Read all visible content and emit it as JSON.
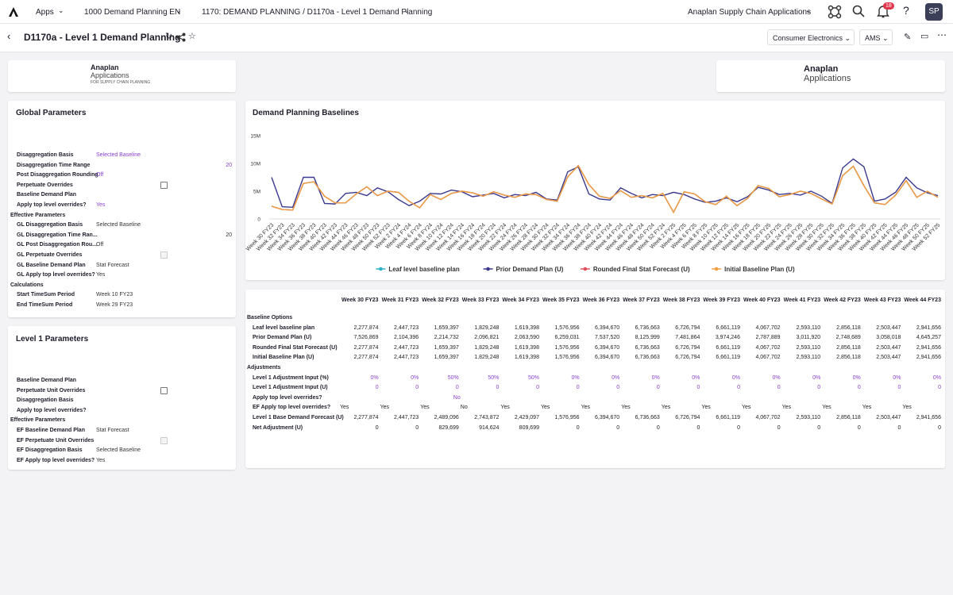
{
  "nav": {
    "apps": "Apps",
    "model": "1000 Demand Planning EN",
    "breadcrumb": "1170: DEMAND PLANNING / D1170a - Level 1 Demand Planning",
    "workspace": "Anaplan Supply Chain Applications",
    "notifications": "18",
    "user": "SP"
  },
  "header": {
    "title": "D1170a - Level 1 Demand Planning",
    "filters": [
      "Consumer Electronics",
      "AMS"
    ]
  },
  "logos": [
    {
      "brand": "Anaplan",
      "product": "Applications",
      "tagline": "FOR SUPPLY CHAIN PLANNING"
    },
    {
      "brand": "Anaplan",
      "product": "Applications"
    }
  ],
  "global_parameters": {
    "title": "Global Parameters",
    "rows": [
      {
        "label": "Disaggregation Basis",
        "value": "Selected Baseline"
      },
      {
        "label": "Disaggregation Time Range",
        "number": "20"
      },
      {
        "label": "Post Disaggregation Rounding",
        "value": "Off"
      },
      {
        "label": "Perpetuate Overrides",
        "checked": false
      },
      {
        "label": "Baseline Demand Plan"
      },
      {
        "label": "Apply top level overrides?",
        "value": "Yes"
      },
      {
        "section": "Effective Parameters"
      },
      {
        "label": "GL Disaggregation Basis",
        "value": "Selected Baseline",
        "readonly": true
      },
      {
        "label": "GL Disaggregation Time Ran...",
        "number": "20",
        "readonly": true
      },
      {
        "label": "GL Post Disaggregation Rou...",
        "value": "Off",
        "readonly": true
      },
      {
        "label": "GL Perpetuate Overrides",
        "checked": false,
        "readonly": true
      },
      {
        "label": "GL Baseline Demand Plan",
        "value": "Stat Forecast",
        "readonly": true
      },
      {
        "label": "GL Apply top level overrides?",
        "value": "Yes",
        "readonly": true
      },
      {
        "section": "Calculations"
      },
      {
        "label": "Start TimeSum Period",
        "value": "Week 10 FY23",
        "readonly": true
      },
      {
        "label": "End TimeSum Period",
        "value": "Week 29 FY23",
        "readonly": true
      }
    ]
  },
  "level1_parameters": {
    "title": "Level 1 Parameters",
    "rows": [
      {
        "label": "Baseline Demand Plan"
      },
      {
        "label": "Perpetuate Unit Overrides",
        "checked": false
      },
      {
        "label": "Disaggregation Basis"
      },
      {
        "label": "Apply top level overrides?"
      },
      {
        "section": "Effective Parameters"
      },
      {
        "label": "EF Baseline Demand Plan",
        "value": "Stat Forecast",
        "readonly": true
      },
      {
        "label": "EF Perpetuate Unit Overrides",
        "checked": false,
        "readonly": true
      },
      {
        "label": "EF Disaggregation Basis",
        "value": "Selected Baseline",
        "readonly": true
      },
      {
        "label": "EF Apply top level overrides?",
        "value": "Yes",
        "readonly": true
      }
    ]
  },
  "chart_data": {
    "type": "line",
    "title": "Demand Planning Baselines",
    "categories": [
      "Week 30 FY23",
      "Week 32 FY23",
      "Week 34 FY23",
      "Week 36 FY23",
      "Week 38 FY23",
      "Week 40 FY23",
      "Week 42 FY23",
      "Week 44 FY23",
      "Week 46 FY23",
      "Week 48 FY23",
      "Week 50 FY23",
      "Week 52 FY23",
      "Week 2 FY24",
      "Week 4 FY24",
      "Week 6 FY24",
      "Week 8 FY24",
      "Week 10 FY24",
      "Week 12 FY24",
      "Week 14 FY24",
      "Week 16 FY24",
      "Week 18 FY24",
      "Week 20 FY24",
      "Week 22 FY24",
      "Week 24 FY24",
      "Week 26 FY24",
      "Week 28 FY24",
      "Week 30 FY24",
      "Week 32 FY24",
      "Week 34 FY24",
      "Week 36 FY24",
      "Week 38 FY24",
      "Week 40 FY24",
      "Week 42 FY24",
      "Week 44 FY24",
      "Week 46 FY24",
      "Week 48 FY24",
      "Week 50 FY24",
      "Week 52 FY24",
      "Week 2 FY25",
      "Week 4 FY25",
      "Week 6 FY25",
      "Week 8 FY25",
      "Week 10 FY25",
      "Week 12 FY25",
      "Week 14 FY25",
      "Week 16 FY25",
      "Week 18 FY25",
      "Week 20 FY25",
      "Week 22 FY25",
      "Week 24 FY25",
      "Week 26 FY25",
      "Week 28 FY25",
      "Week 30 FY25",
      "Week 32 FY25",
      "Week 34 FY25",
      "Week 36 FY25",
      "Week 38 FY25",
      "Week 40 FY25",
      "Week 42 FY25",
      "Week 44 FY25",
      "Week 46 FY25",
      "Week 48 FY25",
      "Week 50 FY25",
      "Week 52 FY25"
    ],
    "series": [
      {
        "name": "Leaf level baseline plan",
        "color": "#2bb3c8",
        "values": [
          2.3,
          1.7,
          1.6,
          6.4,
          6.7,
          4.1,
          2.9,
          2.9,
          4.5,
          5.8,
          4.2,
          5.0,
          4.8,
          3.2,
          2.0,
          4.4,
          3.5,
          4.6,
          5.0,
          4.7,
          4.1,
          4.9,
          4.3,
          3.9,
          4.5,
          4.4,
          3.5,
          3.2,
          7.6,
          9.6,
          6.2,
          4.1,
          3.7,
          5.1,
          3.9,
          4.2,
          3.8,
          4.6,
          1.2,
          4.9,
          4.5,
          3.1,
          2.6,
          4.1,
          2.4,
          3.7,
          6.0,
          5.5,
          4.0,
          4.4,
          5.0,
          4.6,
          3.6,
          2.7,
          7.8,
          9.5,
          6.0,
          2.9,
          2.6,
          4.3,
          6.9,
          3.9,
          5.0,
          3.9
        ]
      },
      {
        "name": "Prior Demand Plan (U)",
        "color": "#3b3a8f",
        "values": [
          7.5,
          2.2,
          2.1,
          7.5,
          7.5,
          2.8,
          2.7,
          4.6,
          4.8,
          4.2,
          5.6,
          4.9,
          3.5,
          2.4,
          3.2,
          4.6,
          4.5,
          5.2,
          4.9,
          4.0,
          4.3,
          4.6,
          3.8,
          4.4,
          4.2,
          4.8,
          3.6,
          3.4,
          8.5,
          9.4,
          4.5,
          3.6,
          3.4,
          5.6,
          4.6,
          3.8,
          4.4,
          4.2,
          4.8,
          4.4,
          3.6,
          3.0,
          3.2,
          3.8,
          3.1,
          4.0,
          5.7,
          5.2,
          4.4,
          4.6,
          4.3,
          5.0,
          4.1,
          2.8,
          9.2,
          10.8,
          9.4,
          3.2,
          3.6,
          4.8,
          7.5,
          5.6,
          4.7,
          4.2
        ]
      },
      {
        "name": "Rounded Final Stat Forecast (U)",
        "color": "#e0505a",
        "values": [
          2.3,
          1.7,
          1.6,
          6.4,
          6.7,
          4.1,
          2.9,
          2.9,
          4.5,
          5.8,
          4.2,
          5.0,
          4.8,
          3.2,
          2.0,
          4.4,
          3.5,
          4.6,
          5.0,
          4.7,
          4.1,
          4.9,
          4.3,
          3.9,
          4.5,
          4.4,
          3.5,
          3.2,
          7.6,
          9.6,
          6.2,
          4.1,
          3.7,
          5.1,
          3.9,
          4.2,
          3.8,
          4.6,
          1.2,
          4.9,
          4.5,
          3.1,
          2.6,
          4.1,
          2.4,
          3.7,
          6.0,
          5.5,
          4.0,
          4.4,
          5.0,
          4.6,
          3.6,
          2.7,
          7.8,
          9.5,
          6.0,
          2.9,
          2.6,
          4.3,
          6.9,
          3.9,
          5.0,
          3.9
        ]
      },
      {
        "name": "Initial Baseline Plan (U)",
        "color": "#f0a040",
        "values": [
          2.3,
          1.7,
          1.6,
          6.4,
          6.7,
          4.1,
          2.9,
          2.9,
          4.5,
          5.8,
          4.2,
          5.0,
          4.8,
          3.2,
          2.0,
          4.4,
          3.5,
          4.6,
          5.0,
          4.7,
          4.1,
          4.9,
          4.3,
          3.9,
          4.5,
          4.4,
          3.5,
          3.2,
          7.6,
          9.6,
          6.2,
          4.1,
          3.7,
          5.1,
          3.9,
          4.2,
          3.8,
          4.6,
          1.2,
          4.9,
          4.5,
          3.1,
          2.6,
          4.1,
          2.4,
          3.7,
          6.0,
          5.5,
          4.0,
          4.4,
          5.0,
          4.6,
          3.6,
          2.7,
          7.8,
          9.5,
          6.0,
          2.9,
          2.6,
          4.3,
          6.9,
          3.9,
          5.0,
          3.9
        ]
      }
    ],
    "ylim": [
      0,
      15
    ],
    "yticks": [
      0,
      {
        "value": 5,
        "label": "5M"
      },
      {
        "value": 10,
        "label": "10M"
      },
      {
        "value": 15,
        "label": "15M"
      }
    ],
    "grid": false,
    "legend": "bottom"
  },
  "table": {
    "columns": [
      "Week 30 FY23",
      "Week 31 FY23",
      "Week 32 FY23",
      "Week 33 FY23",
      "Week 34 FY23",
      "Week 35 FY23",
      "Week 36 FY23",
      "Week 37 FY23",
      "Week 38 FY23",
      "Week 39 FY23",
      "Week 40 FY23",
      "Week 41 FY23",
      "Week 42 FY23",
      "Week 43 FY23",
      "Week 44 FY23"
    ],
    "rows": [
      {
        "section": "Baseline Options"
      },
      {
        "label": "Leaf level baseline plan",
        "values": [
          "2,277,874",
          "2,447,723",
          "1,659,397",
          "1,829,248",
          "1,619,398",
          "1,576,956",
          "6,394,670",
          "6,736,663",
          "6,726,794",
          "6,661,119",
          "4,067,702",
          "2,593,110",
          "2,856,118",
          "2,503,447",
          "2,941,656"
        ]
      },
      {
        "label": "Prior Demand Plan (U)",
        "values": [
          "7,526,869",
          "2,104,396",
          "2,214,732",
          "2,096,821",
          "2,063,590",
          "6,259,031",
          "7,537,520",
          "8,125,999",
          "7,481,864",
          "3,974,246",
          "2,787,889",
          "3,011,920",
          "2,748,689",
          "3,058,018",
          "4,645,257"
        ]
      },
      {
        "label": "Rounded Final Stat Forecast (U)",
        "values": [
          "2,277,874",
          "2,447,723",
          "1,659,397",
          "1,829,248",
          "1,619,398",
          "1,576,956",
          "6,394,670",
          "6,736,663",
          "6,726,794",
          "6,661,119",
          "4,067,702",
          "2,593,110",
          "2,856,118",
          "2,503,447",
          "2,941,656"
        ]
      },
      {
        "label": "Initial Baseline Plan (U)",
        "values": [
          "2,277,874",
          "2,447,723",
          "1,659,397",
          "1,829,248",
          "1,619,398",
          "1,576,956",
          "6,394,670",
          "6,736,663",
          "6,726,794",
          "6,661,119",
          "4,067,702",
          "2,593,110",
          "2,856,118",
          "2,503,447",
          "2,941,656"
        ]
      },
      {
        "section": "Adjustments"
      },
      {
        "label": "Level 1 Adjustment Input (%)",
        "editable": true,
        "values": [
          "0%",
          "0%",
          "50%",
          "50%",
          "50%",
          "0%",
          "0%",
          "0%",
          "0%",
          "0%",
          "0%",
          "0%",
          "0%",
          "0%",
          "0%"
        ]
      },
      {
        "label": "Level 1 Adjustment Input (U)",
        "editable": true,
        "values": [
          "0",
          "0",
          "0",
          "0",
          "0",
          "0",
          "0",
          "0",
          "0",
          "0",
          "0",
          "0",
          "0",
          "0",
          "0"
        ]
      },
      {
        "label": "Apply top level overrides?",
        "editable": true,
        "value": "No"
      },
      {
        "label": "EF Apply top level overrides?",
        "text": true,
        "values": [
          "Yes",
          "Yes",
          "Yes",
          "No",
          "Yes",
          "Yes",
          "Yes",
          "Yes",
          "Yes",
          "Yes",
          "Yes",
          "Yes",
          "Yes",
          "Yes",
          "Yes"
        ]
      },
      {
        "label": "Level 1 Base Demand Forecast (U)",
        "values": [
          "2,277,874",
          "2,447,723",
          "2,489,096",
          "2,743,872",
          "2,429,097",
          "1,576,956",
          "6,394,670",
          "6,736,663",
          "6,726,794",
          "6,661,119",
          "4,067,702",
          "2,593,110",
          "2,856,118",
          "2,503,447",
          "2,941,656"
        ]
      },
      {
        "label": "Net Adjustment (U)",
        "values": [
          "0",
          "0",
          "829,699",
          "914,624",
          "809,699",
          "0",
          "0",
          "0",
          "0",
          "0",
          "0",
          "0",
          "0",
          "0",
          "0"
        ]
      }
    ]
  }
}
